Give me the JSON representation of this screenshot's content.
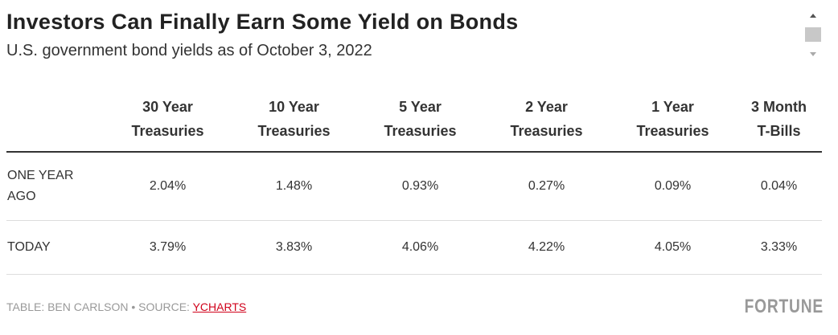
{
  "header": {
    "title": "Investors Can Finally Earn Some Yield on Bonds",
    "subtitle": "U.S. government bond yields as of October 3, 2022"
  },
  "table": {
    "columns": [
      [
        "30 Year",
        "Treasuries"
      ],
      [
        "10 Year",
        "Treasuries"
      ],
      [
        "5 Year",
        "Treasuries"
      ],
      [
        "2 Year",
        "Treasuries"
      ],
      [
        "1 Year",
        "Treasuries"
      ],
      [
        "3 Month",
        "T-Bills"
      ]
    ],
    "rows": [
      {
        "label": "ONE YEAR AGO",
        "cells": [
          "2.04%",
          "1.48%",
          "0.93%",
          "0.27%",
          "0.09%",
          "0.04%"
        ]
      },
      {
        "label": "TODAY",
        "cells": [
          "3.79%",
          "3.83%",
          "4.06%",
          "4.22%",
          "4.05%",
          "3.33%"
        ]
      }
    ]
  },
  "footer": {
    "credit": "TABLE: BEN CARLSON • SOURCE: ",
    "source_link": "YCHARTS",
    "brand": "FORTUNE"
  }
}
